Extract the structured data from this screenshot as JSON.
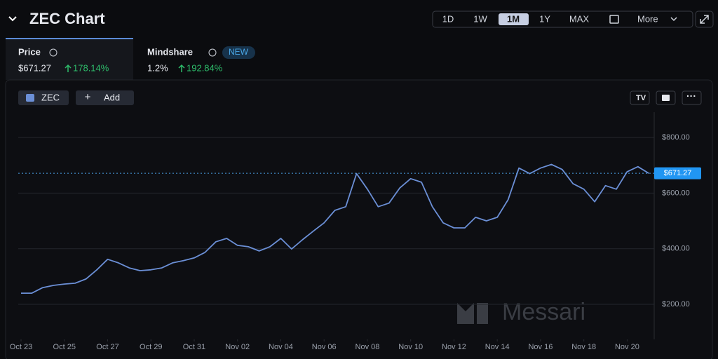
{
  "header": {
    "title": "ZEC Chart",
    "ranges": [
      "1D",
      "1W",
      "1M",
      "1Y",
      "MAX"
    ],
    "more": "More"
  },
  "tabs": [
    {
      "label": "Price",
      "value": "$671.27",
      "change": "178.14%"
    },
    {
      "label": "Mindshare",
      "badge": "NEW",
      "value": "1.2%",
      "change": "192.84%"
    }
  ],
  "add_button": "Add",
  "watermark": "Messari",
  "chart_data": {
    "type": "line",
    "x": [
      0,
      0.5,
      1,
      1.5,
      2,
      2.5,
      3,
      3.5,
      4,
      4.5,
      5,
      5.5,
      6,
      6.5,
      7,
      7.5,
      8,
      8.5,
      9,
      9.5,
      10,
      10.5,
      11,
      11.5,
      12,
      12.5,
      13,
      13.5,
      14,
      14.5,
      15,
      15.5,
      16,
      16.5,
      17,
      17.5,
      18,
      18.5,
      19,
      19.5,
      20,
      20.5,
      21,
      21.5,
      22,
      22.5,
      23,
      23.5,
      24,
      24.5,
      25,
      25.5,
      26,
      26.5,
      27,
      27.5,
      28,
      28.5,
      29
    ],
    "series": [
      {
        "name": "ZEC",
        "color": "#6b8fd6",
        "values": [
          240,
          240,
          260,
          268,
          273,
          276,
          291,
          324,
          362,
          349,
          331,
          321,
          324,
          331,
          349,
          357,
          367,
          387,
          425,
          437,
          412,
          407,
          392,
          407,
          437,
          399,
          432,
          463,
          493,
          538,
          551,
          670,
          614,
          551,
          564,
          619,
          652,
          639,
          551,
          493,
          475,
          475,
          513,
          500,
          513,
          576,
          690,
          670,
          690,
          703,
          685,
          634,
          614,
          569,
          627,
          614,
          677,
          695,
          671
        ]
      }
    ],
    "xlim": [
      -0.13,
      29.25
    ],
    "xticks": [
      {
        "value": 0,
        "label": "Oct 23"
      },
      {
        "value": 2,
        "label": "Oct 25"
      },
      {
        "value": 4,
        "label": "Oct 27"
      },
      {
        "value": 6,
        "label": "Oct 29"
      },
      {
        "value": 8,
        "label": "Oct 31"
      },
      {
        "value": 10,
        "label": "Nov 02"
      },
      {
        "value": 12,
        "label": "Nov 04"
      },
      {
        "value": 14,
        "label": "Nov 06"
      },
      {
        "value": 16,
        "label": "Nov 08"
      },
      {
        "value": 18,
        "label": "Nov 10"
      },
      {
        "value": 20,
        "label": "Nov 12"
      },
      {
        "value": 22,
        "label": "Nov 14"
      },
      {
        "value": 24,
        "label": "Nov 16"
      },
      {
        "value": 26,
        "label": "Nov 18"
      },
      {
        "value": 28,
        "label": "Nov 20"
      }
    ],
    "ylim": [
      84,
      891
    ],
    "yticks": [
      {
        "value": 200,
        "label": "$200.00"
      },
      {
        "value": 400,
        "label": "$400.00"
      },
      {
        "value": 600,
        "label": "$600.00"
      },
      {
        "value": 800,
        "label": "$800.00"
      }
    ],
    "grid": true,
    "last_value": {
      "value": 671.27,
      "label": "$671.27"
    }
  }
}
